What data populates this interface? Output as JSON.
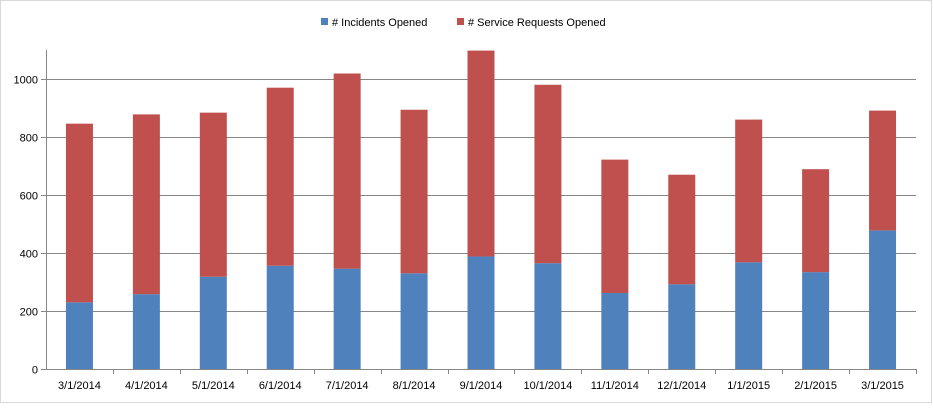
{
  "chart_data": {
    "type": "bar",
    "stacked": true,
    "categories": [
      "3/1/2014",
      "4/1/2014",
      "5/1/2014",
      "6/1/2014",
      "7/1/2014",
      "8/1/2014",
      "9/1/2014",
      "10/1/2014",
      "11/1/2014",
      "12/1/2014",
      "1/1/2015",
      "2/1/2015",
      "3/1/2015"
    ],
    "series": [
      {
        "name": "# Incidents Opened",
        "color": "#4f81bd",
        "values": [
          230,
          258,
          318,
          356,
          346,
          330,
          388,
          365,
          262,
          292,
          368,
          334,
          478
        ]
      },
      {
        "name": "# Service Requests Opened",
        "color": "#c0504d",
        "values": [
          616,
          620,
          566,
          614,
          673,
          564,
          710,
          615,
          460,
          378,
          492,
          355,
          413
        ]
      }
    ],
    "title": "",
    "xlabel": "",
    "ylabel": "",
    "ylim": [
      0,
      1100
    ],
    "yticks": [
      0,
      200,
      400,
      600,
      800,
      1000
    ],
    "grid": true,
    "legend": "top-center"
  }
}
